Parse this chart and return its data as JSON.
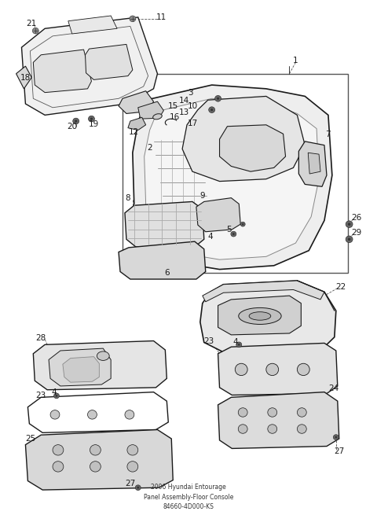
{
  "bg": "#ffffff",
  "lc": "#1a1a1a",
  "tc": "#1a1a1a",
  "title": "2006 Hyundai Entourage\nPanel Assembly-Floor Console\n84660-4D000-KS"
}
